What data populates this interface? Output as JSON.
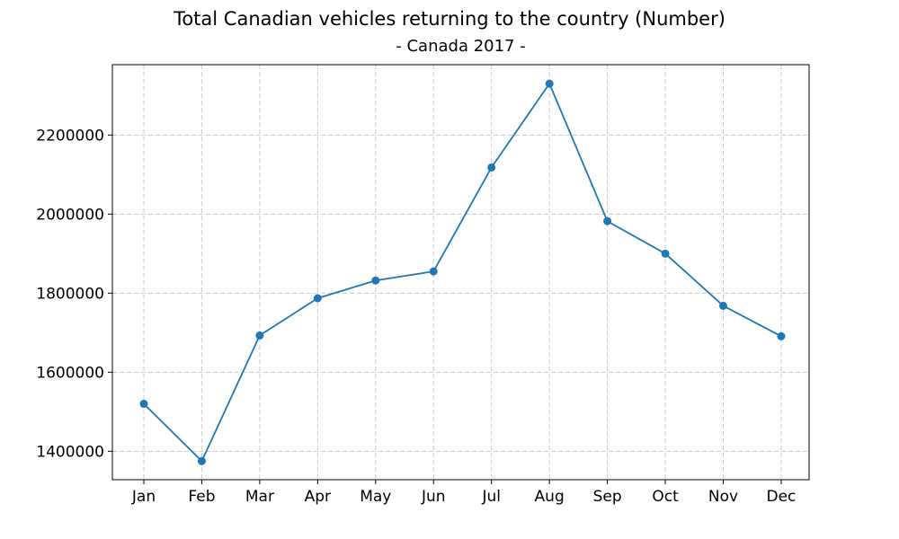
{
  "chart_data": {
    "type": "line",
    "title": "Total Canadian vehicles returning to the country (Number)",
    "subtitle": "- Canada 2017 -",
    "xlabel": "",
    "ylabel": "",
    "categories": [
      "Jan",
      "Feb",
      "Mar",
      "Apr",
      "May",
      "Jun",
      "Jul",
      "Aug",
      "Sep",
      "Oct",
      "Nov",
      "Dec"
    ],
    "series": [
      {
        "values": [
          1520000,
          1375000,
          1693000,
          1787000,
          1832000,
          1855000,
          2118000,
          2330000,
          1982000,
          1900000,
          1768000,
          1691000
        ],
        "color": "#1f77b4"
      }
    ],
    "ylim": [
      1328000,
      2378000
    ],
    "yticks": [
      1400000,
      1600000,
      1800000,
      2000000,
      2200000
    ],
    "ytick_labels": [
      "1400000",
      "1600000",
      "1800000",
      "2000000",
      "2200000"
    ],
    "grid": true,
    "legend": "none"
  }
}
